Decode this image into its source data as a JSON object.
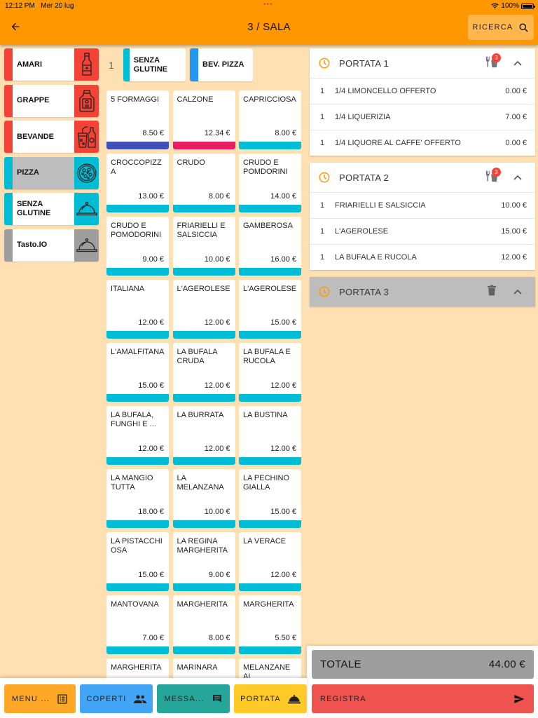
{
  "status_bar": {
    "time": "12:12 PM",
    "date": "Mer 20 lug",
    "battery": "100%"
  },
  "header": {
    "title": "3 / SALA",
    "search_label": "RICERCA"
  },
  "colors": {
    "app_bar": "#FF9800",
    "background": "#FFE0B2",
    "red": "#F44336",
    "cyan": "#00BCD4",
    "blue": "#2196F3",
    "grey": "#9E9E9E",
    "indigo": "#3F51B5",
    "pink": "#E91E63"
  },
  "categories": [
    {
      "label": "AMARI",
      "color": "#F44336",
      "icon": "bottle-icon",
      "selected": false
    },
    {
      "label": "GRAPPE",
      "color": "#F44336",
      "icon": "flask-bottle-icon",
      "selected": false
    },
    {
      "label": "BEVANDE",
      "color": "#F44336",
      "icon": "drinks-icon",
      "selected": false
    },
    {
      "label": "PIZZA",
      "color": "#00BCD4",
      "icon": "pizza-icon",
      "selected": true
    },
    {
      "label": "SENZA GLUTINE",
      "color": "#00BCD4",
      "icon": "cloche-icon",
      "selected": false
    },
    {
      "label": "Tasto.IO",
      "color": "#9E9E9E",
      "icon": "cloche-icon",
      "selected": false
    }
  ],
  "subcategories": {
    "page": "1",
    "items": [
      {
        "label": "SENZA GLUTINE",
        "color": "#00BCD4"
      },
      {
        "label": "BEV. PIZZA",
        "color": "#2196F3"
      }
    ]
  },
  "products": [
    {
      "name": "5 FORMAGGI",
      "price": "8.50 €",
      "color": "#3F51B5"
    },
    {
      "name": "CALZONE",
      "price": "12.34 €",
      "color": "#E91E63"
    },
    {
      "name": "CAPRICCIOSA",
      "price": "8.00 €",
      "color": "#00BCD4"
    },
    {
      "name": "CROCCOPIZZ A",
      "price": "13.00 €",
      "color": "#00BCD4"
    },
    {
      "name": "CRUDO",
      "price": "8.00 €",
      "color": "#00BCD4"
    },
    {
      "name": "CRUDO E POMDORINI",
      "price": "14.00 €",
      "color": "#00BCD4"
    },
    {
      "name": "CRUDO E POMODORINI",
      "price": "9.00 €",
      "color": "#00BCD4"
    },
    {
      "name": "FRIARIELLI E SALSICCIA",
      "price": "10.00 €",
      "color": "#00BCD4"
    },
    {
      "name": "GAMBEROSA",
      "price": "16.00 €",
      "color": "#00BCD4"
    },
    {
      "name": "ITALIANA",
      "price": "12.00 €",
      "color": "#00BCD4"
    },
    {
      "name": "L'AGEROLESE",
      "price": "12.00 €",
      "color": "#00BCD4"
    },
    {
      "name": "L'AGEROLESE",
      "price": "15.00 €",
      "color": "#00BCD4"
    },
    {
      "name": "L'AMALFITANA",
      "price": "15.00 €",
      "color": "#00BCD4"
    },
    {
      "name": "LA BUFALA CRUDA",
      "price": "12.00 €",
      "color": "#00BCD4"
    },
    {
      "name": "LA BUFALA E RUCOLA",
      "price": "12.00 €",
      "color": "#00BCD4"
    },
    {
      "name": "LA BUFALA, FUNGHI E ...",
      "price": "12.00 €",
      "color": "#00BCD4"
    },
    {
      "name": "LA BURRATA",
      "price": "12.00 €",
      "color": "#00BCD4"
    },
    {
      "name": "LA BUSTINA",
      "price": "12.00 €",
      "color": "#00BCD4"
    },
    {
      "name": "LA MANGIO TUTTA",
      "price": "18.00 €",
      "color": "#00BCD4"
    },
    {
      "name": "LA MELANZANA",
      "price": "10.00 €",
      "color": "#00BCD4"
    },
    {
      "name": "LA PECHINO GIALLA",
      "price": "15.00 €",
      "color": "#00BCD4"
    },
    {
      "name": "LA PISTACCHI OSA",
      "price": "15.00 €",
      "color": "#00BCD4"
    },
    {
      "name": "LA REGINA MARGHERITA",
      "price": "9.00 €",
      "color": "#00BCD4"
    },
    {
      "name": "LA VERACE",
      "price": "12.00 €",
      "color": "#00BCD4"
    },
    {
      "name": "MANTOVANA",
      "price": "7.00 €",
      "color": "#00BCD4"
    },
    {
      "name": "MARGHERITA",
      "price": "8.00 €",
      "color": "#00BCD4"
    },
    {
      "name": "MARGHERITA",
      "price": "5.50 €",
      "color": "#00BCD4"
    },
    {
      "name": "MARGHERITA",
      "price": "",
      "color": "#00BCD4"
    },
    {
      "name": "MARINARA",
      "price": "",
      "color": "#00BCD4"
    },
    {
      "name": "MELANZANE AL",
      "price": "",
      "color": "#00BCD4"
    }
  ],
  "order": {
    "courses": [
      {
        "title": "PORTATA 1",
        "badge": "3",
        "action_icon": "cutlery-drink-icon",
        "empty": false,
        "lines": [
          {
            "qty": "1",
            "desc": "1/4 LIMONCELLO OFFERTO",
            "amount": "0.00 €"
          },
          {
            "qty": "1",
            "desc": "1/4 LIQUERIZIA",
            "amount": "7.00 €"
          },
          {
            "qty": "1",
            "desc": "1/4 LIQUORE AL CAFFE' OFFERTO",
            "amount": "0.00 €"
          }
        ]
      },
      {
        "title": "PORTATA 2",
        "badge": "3",
        "action_icon": "cutlery-drink-icon",
        "empty": false,
        "lines": [
          {
            "qty": "1",
            "desc": "FRIARIELLI E SALSICCIA",
            "amount": "10.00 €"
          },
          {
            "qty": "1",
            "desc": "L'AGEROLESE",
            "amount": "15.00 €"
          },
          {
            "qty": "1",
            "desc": "LA BUFALA E RUCOLA",
            "amount": "12.00 €"
          }
        ]
      },
      {
        "title": "PORTATA 3",
        "badge": "",
        "action_icon": "trash-icon",
        "empty": true,
        "lines": []
      }
    ],
    "total_label": "TOTALE",
    "total_value": "44.00 €",
    "register_label": "REGISTRA"
  },
  "actions": [
    {
      "label": "MENU ...",
      "color": "#FFA726",
      "icon": "menu-list-icon"
    },
    {
      "label": "COPERTI",
      "color": "#42A5F5",
      "icon": "people-icon"
    },
    {
      "label": "MESSA...",
      "color": "#26A69A",
      "icon": "message-icon"
    },
    {
      "label": "PORTATA",
      "color": "#FFCA28",
      "icon": "service-bell-icon"
    }
  ]
}
